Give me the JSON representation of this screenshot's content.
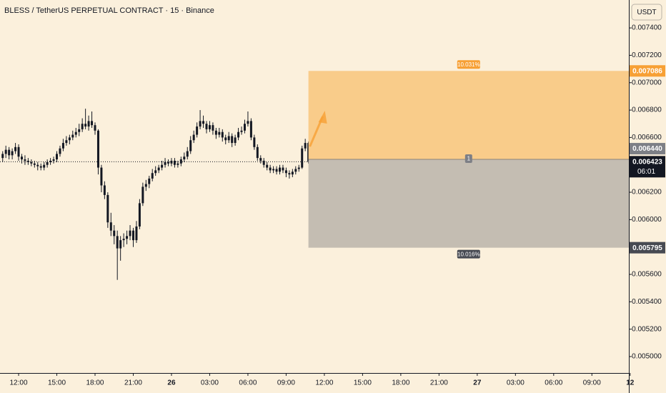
{
  "chart_data": {
    "type": "candlestick",
    "title": "BLESS / TetherUS PERPETUAL CONTRACT · 15 · Binance",
    "currency": "USDT",
    "countdown": "06:01",
    "up_color": "#131722",
    "down_color": "#131722",
    "background": "#fbf0dc",
    "grid": false,
    "x": [
      -1.25,
      -1,
      -0.75,
      -0.5,
      -0.25,
      0,
      0.25,
      0.5,
      0.75,
      1,
      1.25,
      1.5,
      1.75,
      2,
      2.25,
      2.5,
      2.75,
      3,
      3.25,
      3.5,
      3.75,
      4,
      4.25,
      4.5,
      4.75,
      5,
      5.25,
      5.5,
      5.75,
      6,
      6.25,
      6.5,
      6.75,
      7,
      7.25,
      7.5,
      7.75,
      8,
      8.25,
      8.5,
      8.75,
      9,
      9.25,
      9.5,
      9.75,
      10,
      10.25,
      10.5,
      10.75,
      11,
      11.25,
      11.5,
      11.75,
      12,
      12.25,
      12.5,
      12.75,
      13,
      13.25,
      13.5,
      13.75,
      14,
      14.25,
      14.5,
      14.75,
      15,
      15.25,
      15.5,
      15.75,
      16,
      16.25,
      16.5,
      16.75,
      17,
      17.25,
      17.5,
      17.75,
      18,
      18.25,
      18.5,
      18.75,
      19,
      19.25,
      19.5,
      19.75,
      20,
      20.25,
      20.5,
      20.75,
      21,
      21.25,
      21.5,
      21.75,
      22,
      22.25,
      22.5,
      22.75
    ],
    "values": [
      [
        0.00645,
        0.0065,
        0.00642,
        0.00648
      ],
      [
        0.00648,
        0.00654,
        0.00645,
        0.00651
      ],
      [
        0.00651,
        0.00653,
        0.00644,
        0.00647
      ],
      [
        0.00647,
        0.00652,
        0.00644,
        0.0065
      ],
      [
        0.0065,
        0.00656,
        0.00648,
        0.00653
      ],
      [
        0.00653,
        0.00655,
        0.00643,
        0.00646
      ],
      [
        0.00646,
        0.00648,
        0.00641,
        0.00644
      ],
      [
        0.00644,
        0.00647,
        0.0064,
        0.00643
      ],
      [
        0.00643,
        0.00645,
        0.0064,
        0.00642
      ],
      [
        0.00642,
        0.00644,
        0.00639,
        0.00641
      ],
      [
        0.00641,
        0.00643,
        0.00638,
        0.0064
      ],
      [
        0.0064,
        0.00642,
        0.00636,
        0.00639
      ],
      [
        0.00639,
        0.00641,
        0.00636,
        0.00638
      ],
      [
        0.00638,
        0.00642,
        0.00636,
        0.0064
      ],
      [
        0.0064,
        0.00644,
        0.00638,
        0.00642
      ],
      [
        0.00642,
        0.00645,
        0.0064,
        0.00643
      ],
      [
        0.00643,
        0.00646,
        0.00641,
        0.00644
      ],
      [
        0.00644,
        0.0065,
        0.00642,
        0.00648
      ],
      [
        0.00648,
        0.00654,
        0.00646,
        0.00652
      ],
      [
        0.00652,
        0.00659,
        0.0065,
        0.00656
      ],
      [
        0.00656,
        0.00661,
        0.00654,
        0.00658
      ],
      [
        0.00658,
        0.00662,
        0.00655,
        0.0066
      ],
      [
        0.0066,
        0.00665,
        0.00658,
        0.00662
      ],
      [
        0.00662,
        0.00667,
        0.0066,
        0.00664
      ],
      [
        0.00664,
        0.0067,
        0.00661,
        0.00666
      ],
      [
        0.00666,
        0.00674,
        0.00664,
        0.0067
      ],
      [
        0.0067,
        0.00681,
        0.00666,
        0.00668
      ],
      [
        0.00668,
        0.00676,
        0.00665,
        0.00672
      ],
      [
        0.00672,
        0.00679,
        0.00667,
        0.00669
      ],
      [
        0.00669,
        0.00671,
        0.00662,
        0.00665
      ],
      [
        0.00665,
        0.00666,
        0.00633,
        0.00638
      ],
      [
        0.00638,
        0.0064,
        0.0062,
        0.00625
      ],
      [
        0.00625,
        0.00628,
        0.00615,
        0.00618
      ],
      [
        0.00618,
        0.0062,
        0.00594,
        0.00598
      ],
      [
        0.00598,
        0.00605,
        0.00588,
        0.00592
      ],
      [
        0.00592,
        0.00596,
        0.00582,
        0.00588
      ],
      [
        0.00588,
        0.00592,
        0.00556,
        0.00579
      ],
      [
        0.00579,
        0.00588,
        0.0057,
        0.00585
      ],
      [
        0.00585,
        0.0059,
        0.0058,
        0.00586
      ],
      [
        0.00586,
        0.00592,
        0.00582,
        0.00588
      ],
      [
        0.00588,
        0.00596,
        0.00585,
        0.00592
      ],
      [
        0.00592,
        0.00594,
        0.0058,
        0.00585
      ],
      [
        0.00585,
        0.00599,
        0.00583,
        0.00595
      ],
      [
        0.00595,
        0.00615,
        0.00593,
        0.00612
      ],
      [
        0.00612,
        0.00627,
        0.0061,
        0.00624
      ],
      [
        0.00624,
        0.00629,
        0.00621,
        0.00626
      ],
      [
        0.00626,
        0.00632,
        0.00623,
        0.0063
      ],
      [
        0.0063,
        0.00637,
        0.00628,
        0.00634
      ],
      [
        0.00634,
        0.00639,
        0.00632,
        0.00636
      ],
      [
        0.00636,
        0.0064,
        0.00634,
        0.00638
      ],
      [
        0.00638,
        0.00643,
        0.00636,
        0.0064
      ],
      [
        0.0064,
        0.00645,
        0.00638,
        0.00642
      ],
      [
        0.00642,
        0.00644,
        0.00639,
        0.00641
      ],
      [
        0.00641,
        0.00645,
        0.00639,
        0.00643
      ],
      [
        0.00643,
        0.00645,
        0.00638,
        0.0064
      ],
      [
        0.0064,
        0.00643,
        0.00638,
        0.00641
      ],
      [
        0.00641,
        0.00646,
        0.00639,
        0.00644
      ],
      [
        0.00644,
        0.00649,
        0.00642,
        0.00646
      ],
      [
        0.00646,
        0.00653,
        0.00644,
        0.0065
      ],
      [
        0.0065,
        0.00661,
        0.00648,
        0.00658
      ],
      [
        0.00658,
        0.00665,
        0.00656,
        0.00662
      ],
      [
        0.00662,
        0.00671,
        0.0066,
        0.00668
      ],
      [
        0.00668,
        0.0068,
        0.00666,
        0.00672
      ],
      [
        0.00672,
        0.00676,
        0.00667,
        0.0067
      ],
      [
        0.0067,
        0.00672,
        0.00663,
        0.00666
      ],
      [
        0.00666,
        0.00672,
        0.00664,
        0.00669
      ],
      [
        0.00669,
        0.00671,
        0.00662,
        0.00665
      ],
      [
        0.00665,
        0.00667,
        0.00659,
        0.00662
      ],
      [
        0.00662,
        0.00667,
        0.0066,
        0.00664
      ],
      [
        0.00664,
        0.00666,
        0.00657,
        0.0066
      ],
      [
        0.0066,
        0.00662,
        0.00655,
        0.00658
      ],
      [
        0.00658,
        0.00664,
        0.00656,
        0.00661
      ],
      [
        0.00661,
        0.00663,
        0.00653,
        0.00656
      ],
      [
        0.00656,
        0.00662,
        0.00654,
        0.0066
      ],
      [
        0.0066,
        0.00667,
        0.00658,
        0.00664
      ],
      [
        0.00664,
        0.00668,
        0.00662,
        0.00665
      ],
      [
        0.00665,
        0.00673,
        0.00663,
        0.0067
      ],
      [
        0.0067,
        0.00679,
        0.00668,
        0.00672
      ],
      [
        0.00672,
        0.00674,
        0.00658,
        0.0066
      ],
      [
        0.0066,
        0.00662,
        0.00651,
        0.00653
      ],
      [
        0.00653,
        0.00655,
        0.00643,
        0.00645
      ],
      [
        0.00645,
        0.00647,
        0.00641,
        0.00643
      ],
      [
        0.00643,
        0.00645,
        0.00638,
        0.0064
      ],
      [
        0.0064,
        0.00642,
        0.00636,
        0.00638
      ],
      [
        0.00638,
        0.0064,
        0.00634,
        0.00636
      ],
      [
        0.00636,
        0.00639,
        0.00634,
        0.00637
      ],
      [
        0.00637,
        0.00639,
        0.00633,
        0.00635
      ],
      [
        0.00635,
        0.0064,
        0.00633,
        0.00638
      ],
      [
        0.00638,
        0.0064,
        0.00634,
        0.00636
      ],
      [
        0.00636,
        0.00638,
        0.00631,
        0.00634
      ],
      [
        0.00634,
        0.00636,
        0.0063,
        0.00633
      ],
      [
        0.00633,
        0.00637,
        0.00631,
        0.00635
      ],
      [
        0.00635,
        0.00639,
        0.00633,
        0.00637
      ],
      [
        0.00637,
        0.0064,
        0.00635,
        0.00638
      ],
      [
        0.00638,
        0.00654,
        0.00637,
        0.00652
      ],
      [
        0.00652,
        0.00659,
        0.0065,
        0.00656
      ],
      [
        0.00656,
        0.00657,
        0.00641,
        0.006423
      ]
    ],
    "xlim": [
      -1.46,
      47.9
    ],
    "xticks": [
      {
        "value": 0,
        "label": "12:00"
      },
      {
        "value": 3,
        "label": "15:00"
      },
      {
        "value": 6,
        "label": "18:00"
      },
      {
        "value": 9,
        "label": "21:00"
      },
      {
        "value": 12,
        "label": "26"
      },
      {
        "value": 15,
        "label": "03:00"
      },
      {
        "value": 18,
        "label": "06:00"
      },
      {
        "value": 21,
        "label": "09:00"
      },
      {
        "value": 24,
        "label": "12:00"
      },
      {
        "value": 27,
        "label": "15:00"
      },
      {
        "value": 30,
        "label": "18:00"
      },
      {
        "value": 33,
        "label": "21:00"
      },
      {
        "value": 36,
        "label": "27"
      },
      {
        "value": 39,
        "label": "03:00"
      },
      {
        "value": 42,
        "label": "06:00"
      },
      {
        "value": 45,
        "label": "09:00"
      },
      {
        "value": 48,
        "label": "12"
      }
    ],
    "ylim": [
      0.00488,
      0.007604
    ],
    "yticks": [
      {
        "value": 0.0074,
        "label": "0.007400"
      },
      {
        "value": 0.0072,
        "label": "0.007200"
      },
      {
        "value": 0.007,
        "label": "0.007000"
      },
      {
        "value": 0.0068,
        "label": "0.006800"
      },
      {
        "value": 0.0066,
        "label": "0.006600"
      },
      {
        "value": 0.0064,
        "label": "0.006400"
      },
      {
        "value": 0.0062,
        "label": "0.006200"
      },
      {
        "value": 0.006,
        "label": "0.006000"
      },
      {
        "value": 0.0058,
        "label": "0.005800"
      },
      {
        "value": 0.0056,
        "label": "0.005600"
      },
      {
        "value": 0.0054,
        "label": "0.005400"
      },
      {
        "value": 0.0052,
        "label": "0.005200"
      },
      {
        "value": 0.005,
        "label": "0.005000"
      }
    ],
    "position": {
      "start": 22.75,
      "entry": {
        "value": 0.00644,
        "label": "0.006440"
      },
      "target": 0.007086,
      "stop": 0.005795,
      "target_label": "10.031%",
      "stop_label": "10.016%",
      "quantity": "1",
      "target_color": "#f9cc8a",
      "stop_color": "#c4bdb2",
      "target_tag_color": "#f7a035",
      "entry_tag_color": "#7d7f86",
      "stop_tag_color": "#474a52"
    }
  }
}
